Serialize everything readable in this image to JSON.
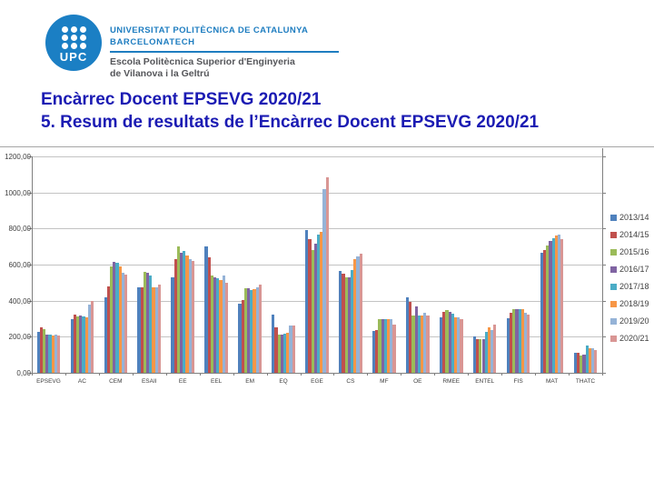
{
  "slide": {
    "logo": {
      "acronym": "UPC",
      "line1": "UNIVERSITAT POLITÈCNICA DE CATALUNYA",
      "line2": "BARCELONATECH",
      "school_line1": "Escola Politècnica Superior d'Enginyeria",
      "school_line2": "de Vilanova i la Geltrú",
      "brand_color": "#1B7FC4"
    },
    "title_line1": "Encàrrec Docent EPSEVG 2020/21",
    "title_line2": "5. Resum de resultats de l’Encàrrec Docent EPSEVG 2020/21",
    "title_color": "#1B1BB3"
  },
  "chart_data": {
    "type": "bar",
    "title": "",
    "xlabel": "",
    "ylabel": "",
    "ylim": [
      0,
      1200
    ],
    "ytick_step": 200,
    "ytick_labels": [
      "0,00",
      "200,00",
      "400,00",
      "600,00",
      "800,00",
      "1000,00",
      "1200,00"
    ],
    "grid": true,
    "legend_position": "right",
    "categories": [
      "EPSEVG",
      "AC",
      "CEM",
      "ESAII",
      "EE",
      "EEL",
      "EM",
      "EQ",
      "EGE",
      "CS",
      "MF",
      "OE",
      "RMEE",
      "ENTEL",
      "FIS",
      "MAT",
      "THATC"
    ],
    "series": [
      {
        "name": "2013/14",
        "color": "#4F81BD",
        "values": [
          227,
          299,
          418,
          474,
          529,
          702,
          383,
          322,
          793,
          564,
          230,
          417,
          310,
          202,
          302,
          664,
          111
        ]
      },
      {
        "name": "2014/15",
        "color": "#C0504D",
        "values": [
          250,
          322,
          479,
          474,
          630,
          640,
          403,
          252,
          740,
          551,
          235,
          393,
          338,
          188,
          332,
          680,
          111
        ]
      },
      {
        "name": "2015/16",
        "color": "#9BBB59",
        "values": [
          242,
          312,
          590,
          559,
          700,
          539,
          470,
          211,
          680,
          529,
          295,
          319,
          349,
          187,
          353,
          706,
          97
        ]
      },
      {
        "name": "2016/17",
        "color": "#8064A2",
        "values": [
          212,
          319,
          615,
          556,
          665,
          529,
          468,
          212,
          715,
          530,
          300,
          367,
          338,
          188,
          353,
          731,
          99
        ]
      },
      {
        "name": "2017/18",
        "color": "#4BACC6",
        "values": [
          213,
          312,
          610,
          539,
          675,
          524,
          458,
          215,
          765,
          571,
          300,
          319,
          327,
          227,
          353,
          748,
          151
        ]
      },
      {
        "name": "2018/19",
        "color": "#F79646",
        "values": [
          208,
          307,
          590,
          474,
          651,
          514,
          462,
          222,
          781,
          630,
          295,
          319,
          310,
          252,
          351,
          761,
          136
        ]
      },
      {
        "name": "2019/20",
        "color": "#95B3D7",
        "values": [
          210,
          378,
          554,
          474,
          630,
          539,
          472,
          262,
          1017,
          646,
          298,
          332,
          308,
          237,
          332,
          768,
          136
        ]
      },
      {
        "name": "2020/21",
        "color": "#D99694",
        "values": [
          205,
          397,
          544,
          490,
          620,
          499,
          490,
          262,
          1083,
          660,
          267,
          319,
          297,
          267,
          324,
          740,
          126
        ]
      }
    ]
  }
}
